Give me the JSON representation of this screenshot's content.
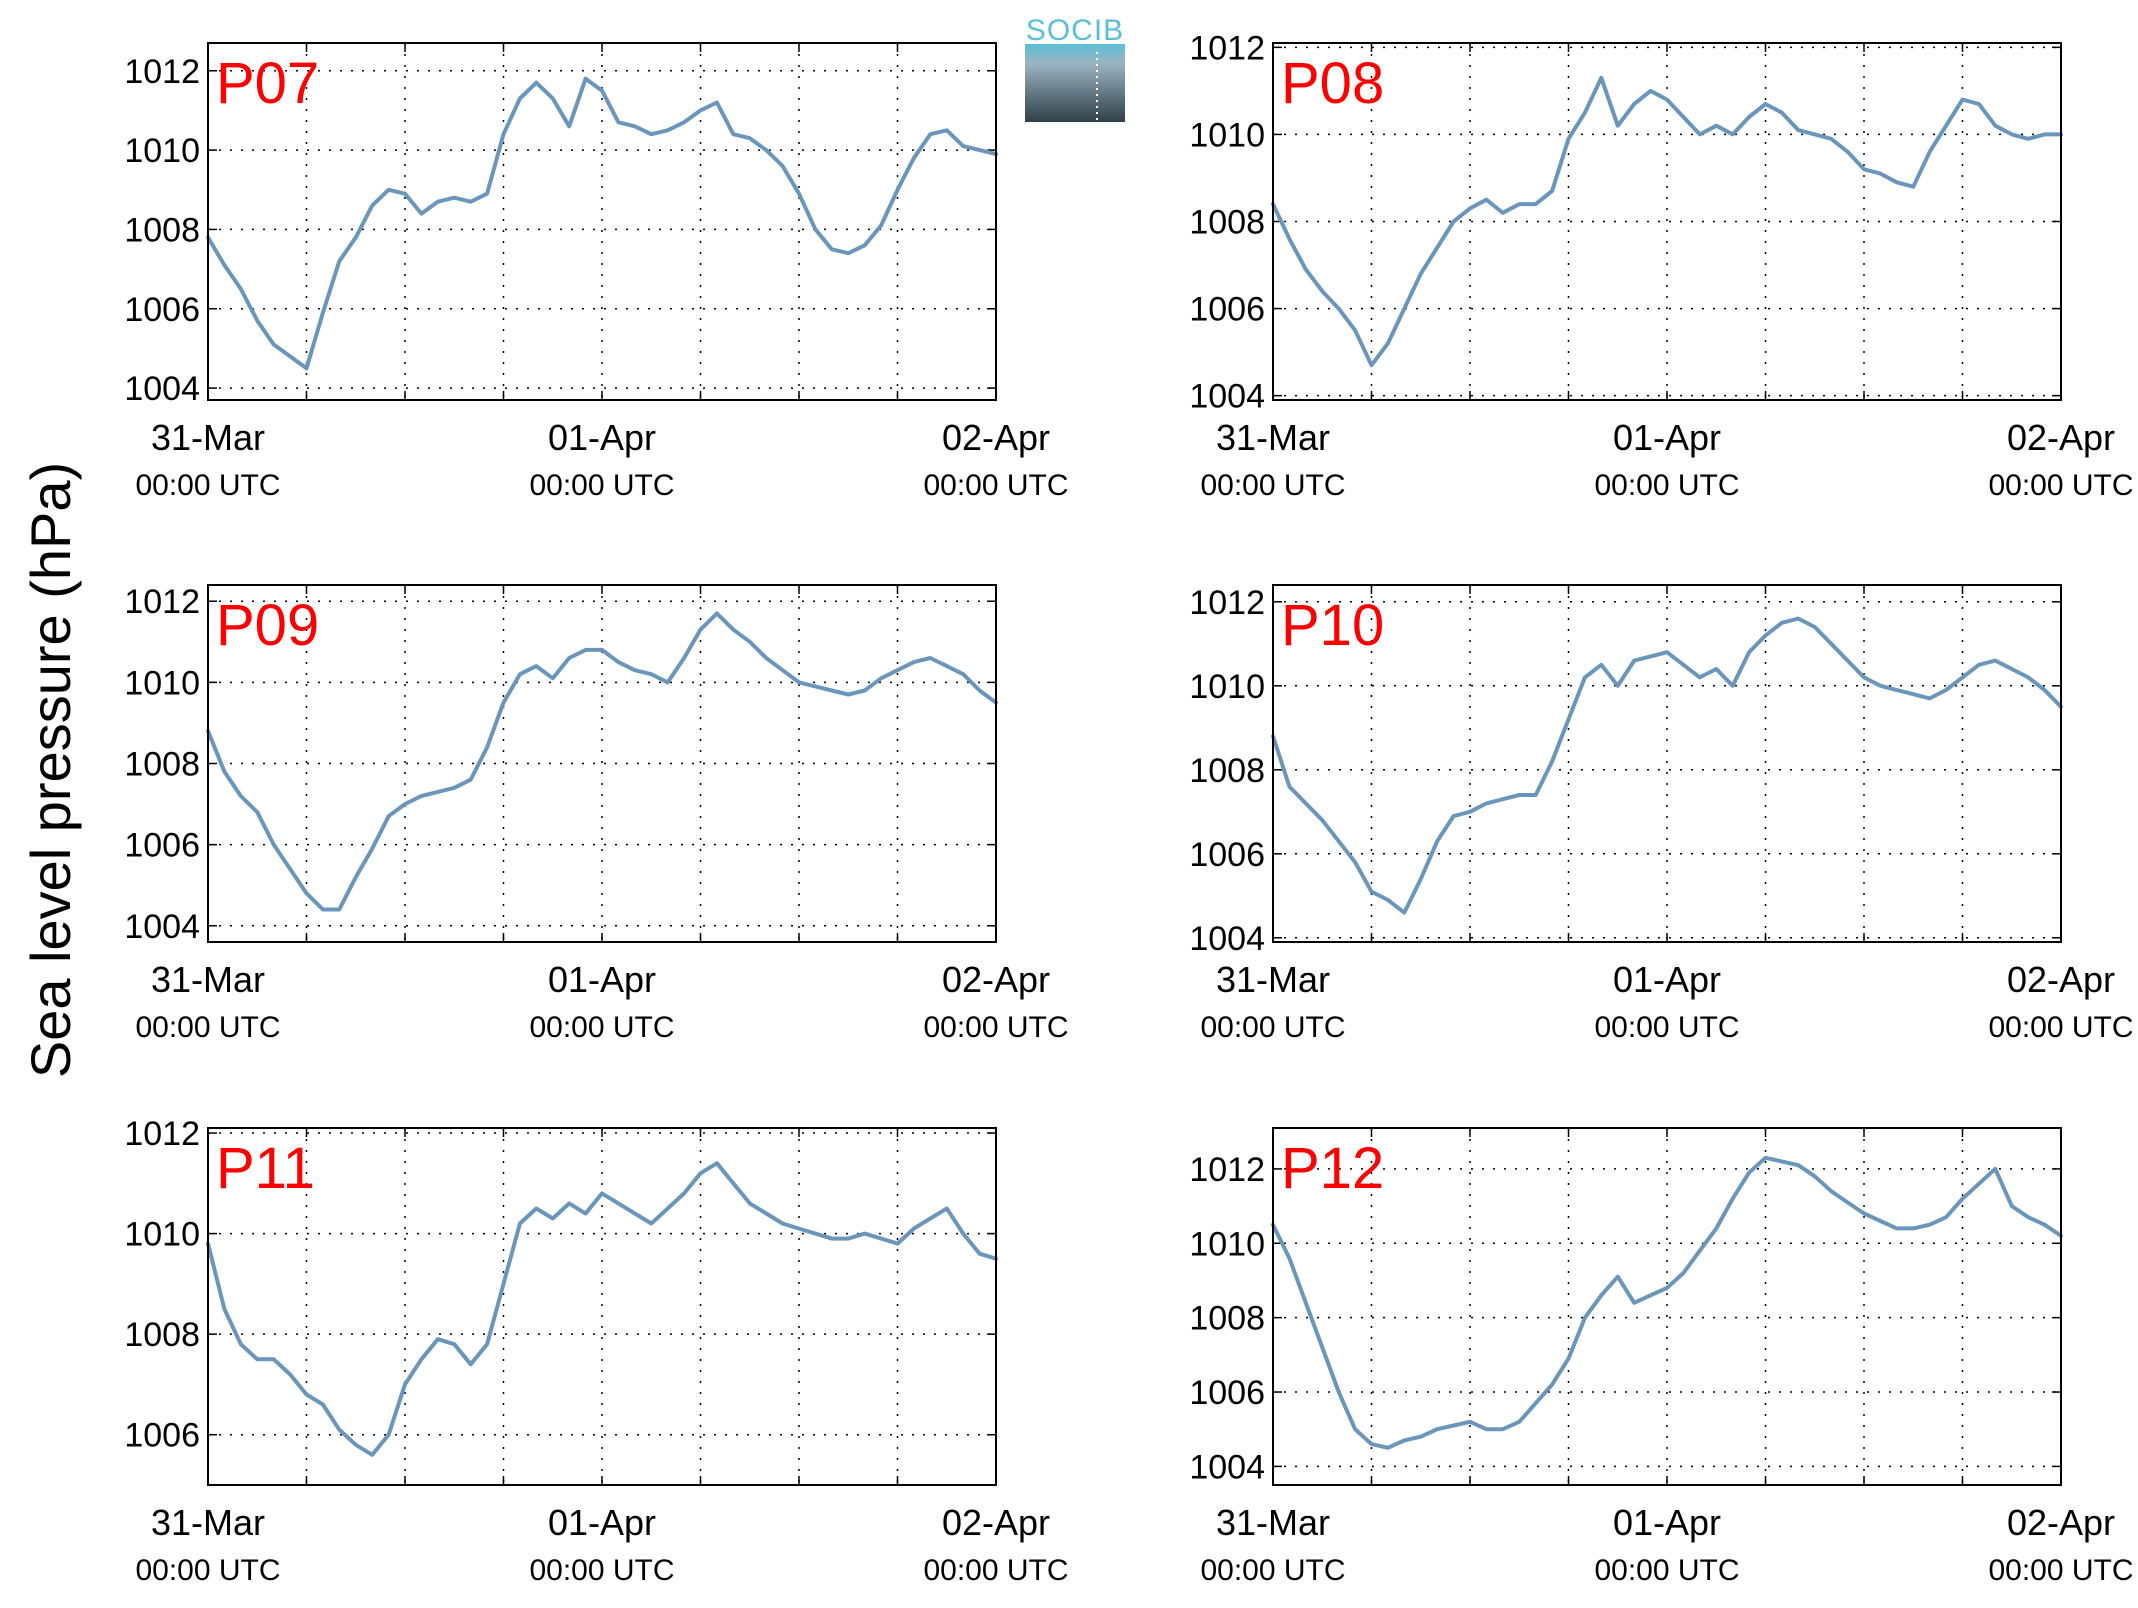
{
  "figure": {
    "ylabel": "Sea level pressure (hPa)",
    "logo_text": "SOCIB"
  },
  "colors": {
    "line": "#6b96bb",
    "panel_label": "#ff0000",
    "logo_top": "#5bbfd6",
    "logo_bottom": "#2f3f48"
  },
  "chart_data": [
    {
      "type": "line",
      "title": "P07",
      "x_ticks": [
        {
          "date": "31-Mar",
          "time": "00:00 UTC"
        },
        {
          "date": "01-Apr",
          "time": "00:00 UTC"
        },
        {
          "date": "02-Apr",
          "time": "00:00 UTC"
        }
      ],
      "xlim_hours": [
        0,
        48
      ],
      "ylim": [
        1003.7,
        1012.7
      ],
      "yticks": [
        1004,
        1006,
        1008,
        1010,
        1012
      ],
      "grid": true,
      "series": [
        {
          "x_hours": [
            0,
            1,
            2,
            3,
            4,
            5,
            6,
            7,
            8,
            9,
            10,
            11,
            12,
            13,
            14,
            15,
            16,
            17,
            18,
            19,
            20,
            21,
            22,
            23,
            24,
            25,
            26,
            27,
            28,
            29,
            30,
            31,
            32,
            33,
            34,
            35,
            36,
            37,
            38,
            39,
            40,
            41,
            42,
            43,
            44,
            45,
            46,
            47,
            48
          ],
          "values": [
            1007.8,
            1007.1,
            1006.5,
            1005.7,
            1005.1,
            1004.8,
            1004.5,
            1005.9,
            1007.2,
            1007.8,
            1008.6,
            1009.0,
            1008.9,
            1008.4,
            1008.7,
            1008.8,
            1008.7,
            1008.9,
            1010.4,
            1011.3,
            1011.7,
            1011.3,
            1010.6,
            1011.8,
            1011.5,
            1010.7,
            1010.6,
            1010.4,
            1010.5,
            1010.7,
            1011.0,
            1011.2,
            1010.4,
            1010.3,
            1010.0,
            1009.6,
            1008.9,
            1008.0,
            1007.5,
            1007.4,
            1007.6,
            1008.1,
            1009.0,
            1009.8,
            1010.4,
            1010.5,
            1010.1,
            1010.0,
            1009.9
          ]
        }
      ]
    },
    {
      "type": "line",
      "title": "P08",
      "x_ticks": [
        {
          "date": "31-Mar",
          "time": "00:00 UTC"
        },
        {
          "date": "01-Apr",
          "time": "00:00 UTC"
        },
        {
          "date": "02-Apr",
          "time": "00:00 UTC"
        }
      ],
      "xlim_hours": [
        0,
        48
      ],
      "ylim": [
        1003.9,
        1012.1
      ],
      "yticks": [
        1004,
        1006,
        1008,
        1010,
        1012
      ],
      "grid": true,
      "series": [
        {
          "x_hours": [
            0,
            1,
            2,
            3,
            4,
            5,
            6,
            7,
            8,
            9,
            10,
            11,
            12,
            13,
            14,
            15,
            16,
            17,
            18,
            19,
            20,
            21,
            22,
            23,
            24,
            25,
            26,
            27,
            28,
            29,
            30,
            31,
            32,
            33,
            34,
            35,
            36,
            37,
            38,
            39,
            40,
            41,
            42,
            43,
            44,
            45,
            46,
            47,
            48
          ],
          "values": [
            1008.4,
            1007.6,
            1006.9,
            1006.4,
            1006.0,
            1005.5,
            1004.7,
            1005.2,
            1006.0,
            1006.8,
            1007.4,
            1008.0,
            1008.3,
            1008.5,
            1008.2,
            1008.4,
            1008.4,
            1008.7,
            1009.9,
            1010.5,
            1011.3,
            1010.2,
            1010.7,
            1011.0,
            1010.8,
            1010.4,
            1010.0,
            1010.2,
            1010.0,
            1010.4,
            1010.7,
            1010.5,
            1010.1,
            1010.0,
            1009.9,
            1009.6,
            1009.2,
            1009.1,
            1008.9,
            1008.8,
            1009.6,
            1010.2,
            1010.8,
            1010.7,
            1010.2,
            1010.0,
            1009.9,
            1010.0,
            1010.0
          ]
        }
      ]
    },
    {
      "type": "line",
      "title": "P09",
      "x_ticks": [
        {
          "date": "31-Mar",
          "time": "00:00 UTC"
        },
        {
          "date": "01-Apr",
          "time": "00:00 UTC"
        },
        {
          "date": "02-Apr",
          "time": "00:00 UTC"
        }
      ],
      "xlim_hours": [
        0,
        48
      ],
      "ylim": [
        1003.6,
        1012.4
      ],
      "yticks": [
        1004,
        1006,
        1008,
        1010,
        1012
      ],
      "grid": true,
      "series": [
        {
          "x_hours": [
            0,
            1,
            2,
            3,
            4,
            5,
            6,
            7,
            8,
            9,
            10,
            11,
            12,
            13,
            14,
            15,
            16,
            17,
            18,
            19,
            20,
            21,
            22,
            23,
            24,
            25,
            26,
            27,
            28,
            29,
            30,
            31,
            32,
            33,
            34,
            35,
            36,
            37,
            38,
            39,
            40,
            41,
            42,
            43,
            44,
            45,
            46,
            47,
            48
          ],
          "values": [
            1008.8,
            1007.8,
            1007.2,
            1006.8,
            1006.0,
            1005.4,
            1004.8,
            1004.4,
            1004.4,
            1005.2,
            1005.9,
            1006.7,
            1007.0,
            1007.2,
            1007.3,
            1007.4,
            1007.6,
            1008.4,
            1009.5,
            1010.2,
            1010.4,
            1010.1,
            1010.6,
            1010.8,
            1010.8,
            1010.5,
            1010.3,
            1010.2,
            1010.0,
            1010.6,
            1011.3,
            1011.7,
            1011.3,
            1011.0,
            1010.6,
            1010.3,
            1010.0,
            1009.9,
            1009.8,
            1009.7,
            1009.8,
            1010.1,
            1010.3,
            1010.5,
            1010.6,
            1010.4,
            1010.2,
            1009.8,
            1009.5
          ]
        }
      ]
    },
    {
      "type": "line",
      "title": "P10",
      "x_ticks": [
        {
          "date": "31-Mar",
          "time": "00:00 UTC"
        },
        {
          "date": "01-Apr",
          "time": "00:00 UTC"
        },
        {
          "date": "02-Apr",
          "time": "00:00 UTC"
        }
      ],
      "xlim_hours": [
        0,
        48
      ],
      "ylim": [
        1003.9,
        1012.4
      ],
      "yticks": [
        1004,
        1006,
        1008,
        1010,
        1012
      ],
      "grid": true,
      "series": [
        {
          "x_hours": [
            0,
            1,
            2,
            3,
            4,
            5,
            6,
            7,
            8,
            9,
            10,
            11,
            12,
            13,
            14,
            15,
            16,
            17,
            18,
            19,
            20,
            21,
            22,
            23,
            24,
            25,
            26,
            27,
            28,
            29,
            30,
            31,
            32,
            33,
            34,
            35,
            36,
            37,
            38,
            39,
            40,
            41,
            42,
            43,
            44,
            45,
            46,
            47,
            48
          ],
          "values": [
            1008.8,
            1007.6,
            1007.2,
            1006.8,
            1006.3,
            1005.8,
            1005.1,
            1004.9,
            1004.6,
            1005.4,
            1006.3,
            1006.9,
            1007.0,
            1007.2,
            1007.3,
            1007.4,
            1007.4,
            1008.2,
            1009.2,
            1010.2,
            1010.5,
            1010.0,
            1010.6,
            1010.7,
            1010.8,
            1010.5,
            1010.2,
            1010.4,
            1010.0,
            1010.8,
            1011.2,
            1011.5,
            1011.6,
            1011.4,
            1011.0,
            1010.6,
            1010.2,
            1010.0,
            1009.9,
            1009.8,
            1009.7,
            1009.9,
            1010.2,
            1010.5,
            1010.6,
            1010.4,
            1010.2,
            1009.9,
            1009.5
          ]
        }
      ]
    },
    {
      "type": "line",
      "title": "P11",
      "x_ticks": [
        {
          "date": "31-Mar",
          "time": "00:00 UTC"
        },
        {
          "date": "01-Apr",
          "time": "00:00 UTC"
        },
        {
          "date": "02-Apr",
          "time": "00:00 UTC"
        }
      ],
      "xlim_hours": [
        0,
        48
      ],
      "ylim": [
        1005.0,
        1012.1
      ],
      "yticks": [
        1006,
        1008,
        1010,
        1012
      ],
      "grid": true,
      "series": [
        {
          "x_hours": [
            0,
            1,
            2,
            3,
            4,
            5,
            6,
            7,
            8,
            9,
            10,
            11,
            12,
            13,
            14,
            15,
            16,
            17,
            18,
            19,
            20,
            21,
            22,
            23,
            24,
            25,
            26,
            27,
            28,
            29,
            30,
            31,
            32,
            33,
            34,
            35,
            36,
            37,
            38,
            39,
            40,
            41,
            42,
            43,
            44,
            45,
            46,
            47,
            48
          ],
          "values": [
            1009.8,
            1008.5,
            1007.8,
            1007.5,
            1007.5,
            1007.2,
            1006.8,
            1006.6,
            1006.1,
            1005.8,
            1005.6,
            1006.0,
            1007.0,
            1007.5,
            1007.9,
            1007.8,
            1007.4,
            1007.8,
            1009.0,
            1010.2,
            1010.5,
            1010.3,
            1010.6,
            1010.4,
            1010.8,
            1010.6,
            1010.4,
            1010.2,
            1010.5,
            1010.8,
            1011.2,
            1011.4,
            1011.0,
            1010.6,
            1010.4,
            1010.2,
            1010.1,
            1010.0,
            1009.9,
            1009.9,
            1010.0,
            1009.9,
            1009.8,
            1010.1,
            1010.3,
            1010.5,
            1010.0,
            1009.6,
            1009.5
          ]
        }
      ]
    },
    {
      "type": "line",
      "title": "P12",
      "x_ticks": [
        {
          "date": "31-Mar",
          "time": "00:00 UTC"
        },
        {
          "date": "01-Apr",
          "time": "00:00 UTC"
        },
        {
          "date": "02-Apr",
          "time": "00:00 UTC"
        }
      ],
      "xlim_hours": [
        0,
        48
      ],
      "ylim": [
        1003.5,
        1013.1
      ],
      "yticks": [
        1004,
        1006,
        1008,
        1010,
        1012
      ],
      "grid": true,
      "series": [
        {
          "x_hours": [
            0,
            1,
            2,
            3,
            4,
            5,
            6,
            7,
            8,
            9,
            10,
            11,
            12,
            13,
            14,
            15,
            16,
            17,
            18,
            19,
            20,
            21,
            22,
            23,
            24,
            25,
            26,
            27,
            28,
            29,
            30,
            31,
            32,
            33,
            34,
            35,
            36,
            37,
            38,
            39,
            40,
            41,
            42,
            43,
            44,
            45,
            46,
            47,
            48
          ],
          "values": [
            1010.5,
            1009.6,
            1008.4,
            1007.2,
            1006.0,
            1005.0,
            1004.6,
            1004.5,
            1004.7,
            1004.8,
            1005.0,
            1005.1,
            1005.2,
            1005.0,
            1005.0,
            1005.2,
            1005.7,
            1006.2,
            1006.9,
            1008.0,
            1008.6,
            1009.1,
            1008.4,
            1008.6,
            1008.8,
            1009.2,
            1009.8,
            1010.4,
            1011.2,
            1011.9,
            1012.3,
            1012.2,
            1012.1,
            1011.8,
            1011.4,
            1011.1,
            1010.8,
            1010.6,
            1010.4,
            1010.4,
            1010.5,
            1010.7,
            1011.2,
            1011.6,
            1012.0,
            1011.0,
            1010.7,
            1010.5,
            1010.2
          ]
        }
      ]
    }
  ]
}
